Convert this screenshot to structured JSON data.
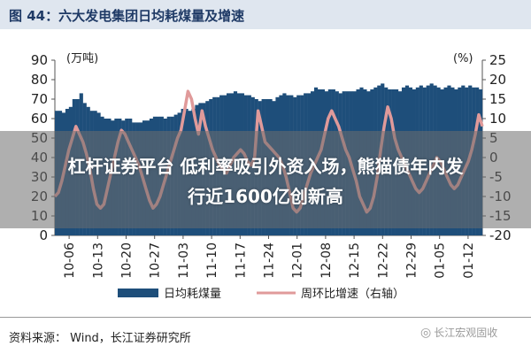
{
  "header": {
    "title": "图 44：六大发电集团日均耗煤量及增速"
  },
  "overlay": {
    "line1": "杠杆证券平台 低利率吸引外资入场，熊猫债年内发",
    "line2": "行近1600亿创新高"
  },
  "footer": {
    "source": "资料来源： Wind，长江证券研究所",
    "watermark": "长江宏观固收",
    "watermark_icon": "wechat-icon"
  },
  "colors": {
    "bar": "#1e4e7a",
    "line": "#e09a9a",
    "header_bg": "#dfe6ef",
    "title": "#1f3a66"
  },
  "chart_data": {
    "type": "bar",
    "title": "",
    "left_unit": "(万吨)",
    "right_unit": "(%)",
    "y_left": {
      "min": 0,
      "max": 90,
      "ticks": [
        0,
        10,
        20,
        30,
        40,
        50,
        60,
        70,
        80,
        90
      ]
    },
    "y_right": {
      "min": -20,
      "max": 25,
      "ticks": [
        -20,
        -15,
        -10,
        -5,
        0,
        5,
        10,
        15,
        20,
        25
      ]
    },
    "x_ticks": [
      "10-06",
      "10-13",
      "10-20",
      "10-27",
      "11-03",
      "11-10",
      "11-17",
      "11-24",
      "12-01",
      "12-08",
      "12-15",
      "12-22",
      "12-29",
      "01-05",
      "01-12"
    ],
    "grid": false,
    "legend_position": "bottom",
    "series": [
      {
        "name": "日均耗煤量",
        "type": "bar",
        "axis": "left",
        "values": [
          64,
          64,
          63,
          65,
          66,
          70,
          70,
          73,
          68,
          66,
          64,
          64,
          63,
          61,
          60,
          60,
          59,
          60,
          60,
          59,
          60,
          60,
          58,
          58,
          58,
          59,
          59,
          60,
          61,
          61,
          61,
          60,
          61,
          61,
          62,
          63,
          65,
          65,
          64,
          65,
          67,
          68,
          68,
          69,
          70,
          71,
          71,
          72,
          72,
          73,
          73,
          74,
          73,
          73,
          72,
          72,
          71,
          70,
          69,
          70,
          70,
          70,
          69,
          71,
          72,
          73,
          72,
          72,
          71,
          72,
          72,
          73,
          73,
          74,
          76,
          75,
          75,
          74,
          75,
          75,
          74,
          73,
          74,
          74,
          74,
          74,
          75,
          76,
          75,
          74,
          75,
          76,
          77,
          78,
          76,
          75,
          75,
          75,
          74,
          76,
          77,
          76,
          75,
          76,
          77,
          76,
          77,
          78,
          77,
          76,
          75,
          76,
          77,
          76,
          75,
          76,
          77,
          76,
          77,
          76,
          76,
          75
        ]
      },
      {
        "name": "周环比增速（右轴）",
        "type": "line",
        "axis": "right",
        "values": [
          -10,
          -9,
          -6,
          -2,
          2,
          5,
          8,
          6,
          4,
          1,
          -3,
          -8,
          -12,
          -13,
          -12,
          -8,
          -4,
          0,
          4,
          7,
          6,
          4,
          2,
          0,
          -2,
          -5,
          -8,
          -11,
          -13,
          -12,
          -10,
          -7,
          -4,
          -1,
          2,
          5,
          7,
          12,
          17,
          15,
          10,
          6,
          12,
          8,
          5,
          2,
          0,
          -2,
          -3,
          -4,
          -2,
          0,
          1,
          2,
          1,
          -1,
          -2,
          0,
          12,
          8,
          4,
          3,
          2,
          1,
          0,
          -2,
          -5,
          -9,
          -13,
          -14,
          -13,
          -10,
          -7,
          -4,
          -2,
          0,
          2,
          6,
          10,
          12,
          10,
          8,
          5,
          2,
          0,
          -3,
          -6,
          -10,
          -12,
          -14,
          -13,
          -10,
          -5,
          2,
          8,
          13,
          10,
          5,
          2,
          0,
          -2,
          -4,
          -6,
          -8,
          -9,
          -8,
          -6,
          -4,
          -2,
          0,
          -1,
          -3,
          -5,
          -7,
          -8,
          -7,
          -5,
          -3,
          -1,
          2,
          6,
          11,
          8
        ]
      }
    ]
  }
}
